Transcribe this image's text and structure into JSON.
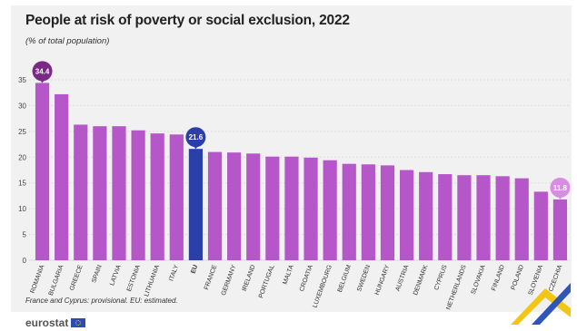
{
  "header": {
    "title": "People at risk of poverty or social exclusion, 2022",
    "subtitle": "(% of total population)"
  },
  "footer": {
    "note": "France and Cyprus: provisional. EU: estimated.",
    "brand": "eurostat"
  },
  "colors": {
    "bar": "#b557c9",
    "eu_bar": "#2a3fa8",
    "max_bubble": "#7a2a86",
    "min_bubble": "#d98ce4",
    "grid": "#dcdcdc"
  },
  "chart_data": {
    "type": "bar",
    "title": "People at risk of poverty or social exclusion, 2022",
    "ylabel": "% of total population",
    "ylim": [
      0,
      35
    ],
    "yticks": [
      0,
      5,
      10,
      15,
      20,
      25,
      30,
      35
    ],
    "grid": true,
    "categories": [
      "ROMANIA",
      "BULGARIA",
      "GREECE",
      "SPAIN",
      "LATVIA",
      "ESTONIA",
      "LITHUANIA",
      "ITALY",
      "EU",
      "FRANCE",
      "GERMANY",
      "IRELAND",
      "PORTUGAL",
      "MALTA",
      "CROATIA",
      "LUXEMBOURG",
      "BELGIUM",
      "SWEDEN",
      "HUNGARY",
      "AUSTRIA",
      "DENMARK",
      "CYPRUS",
      "NETHERLANDS",
      "SLOVAKIA",
      "FINLAND",
      "POLAND",
      "SLOVENIA",
      "CZECHIA"
    ],
    "values": [
      34.4,
      32.2,
      26.3,
      26.0,
      26.0,
      25.2,
      24.6,
      24.4,
      21.6,
      21.0,
      20.9,
      20.7,
      20.1,
      20.1,
      19.9,
      19.4,
      18.7,
      18.6,
      18.4,
      17.5,
      17.1,
      16.7,
      16.5,
      16.5,
      16.3,
      15.9,
      13.3,
      11.8
    ],
    "annotations": [
      {
        "category": "ROMANIA",
        "label": "34.4",
        "style": "max"
      },
      {
        "category": "EU",
        "label": "21.6",
        "style": "eu"
      },
      {
        "category": "CZECHIA",
        "label": "11.8",
        "style": "min"
      }
    ]
  }
}
